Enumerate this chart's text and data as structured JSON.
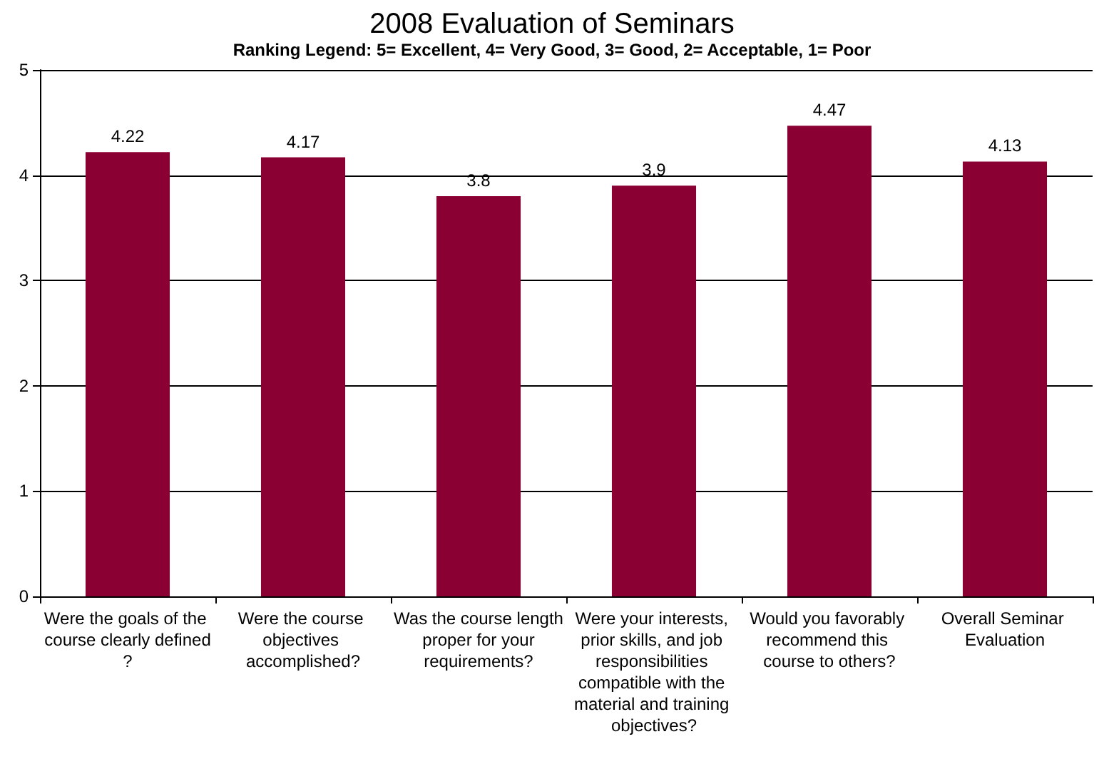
{
  "chart_data": {
    "type": "bar",
    "title": "2008 Evaluation of Seminars",
    "subtitle": "Ranking Legend: 5= Excellent, 4= Very Good, 3= Good, 2= Acceptable, 1= Poor",
    "categories": [
      "Were the goals of the course clearly defined?",
      "Were the course objectives accomplished?",
      "Was the course length proper for your requirements?",
      "Were your interests, prior skills, and job responsibilities compatible with the material and training objectives?",
      "Would you favorably recommend this course to others?",
      "Overall Seminar Evaluation"
    ],
    "values": [
      4.22,
      4.17,
      3.8,
      3.9,
      4.47,
      4.13
    ],
    "color": "#8b0033",
    "ylim": [
      0,
      5
    ],
    "yticks": [
      0,
      1,
      2,
      3,
      4,
      5
    ],
    "grid": "y",
    "data_labels": true
  }
}
